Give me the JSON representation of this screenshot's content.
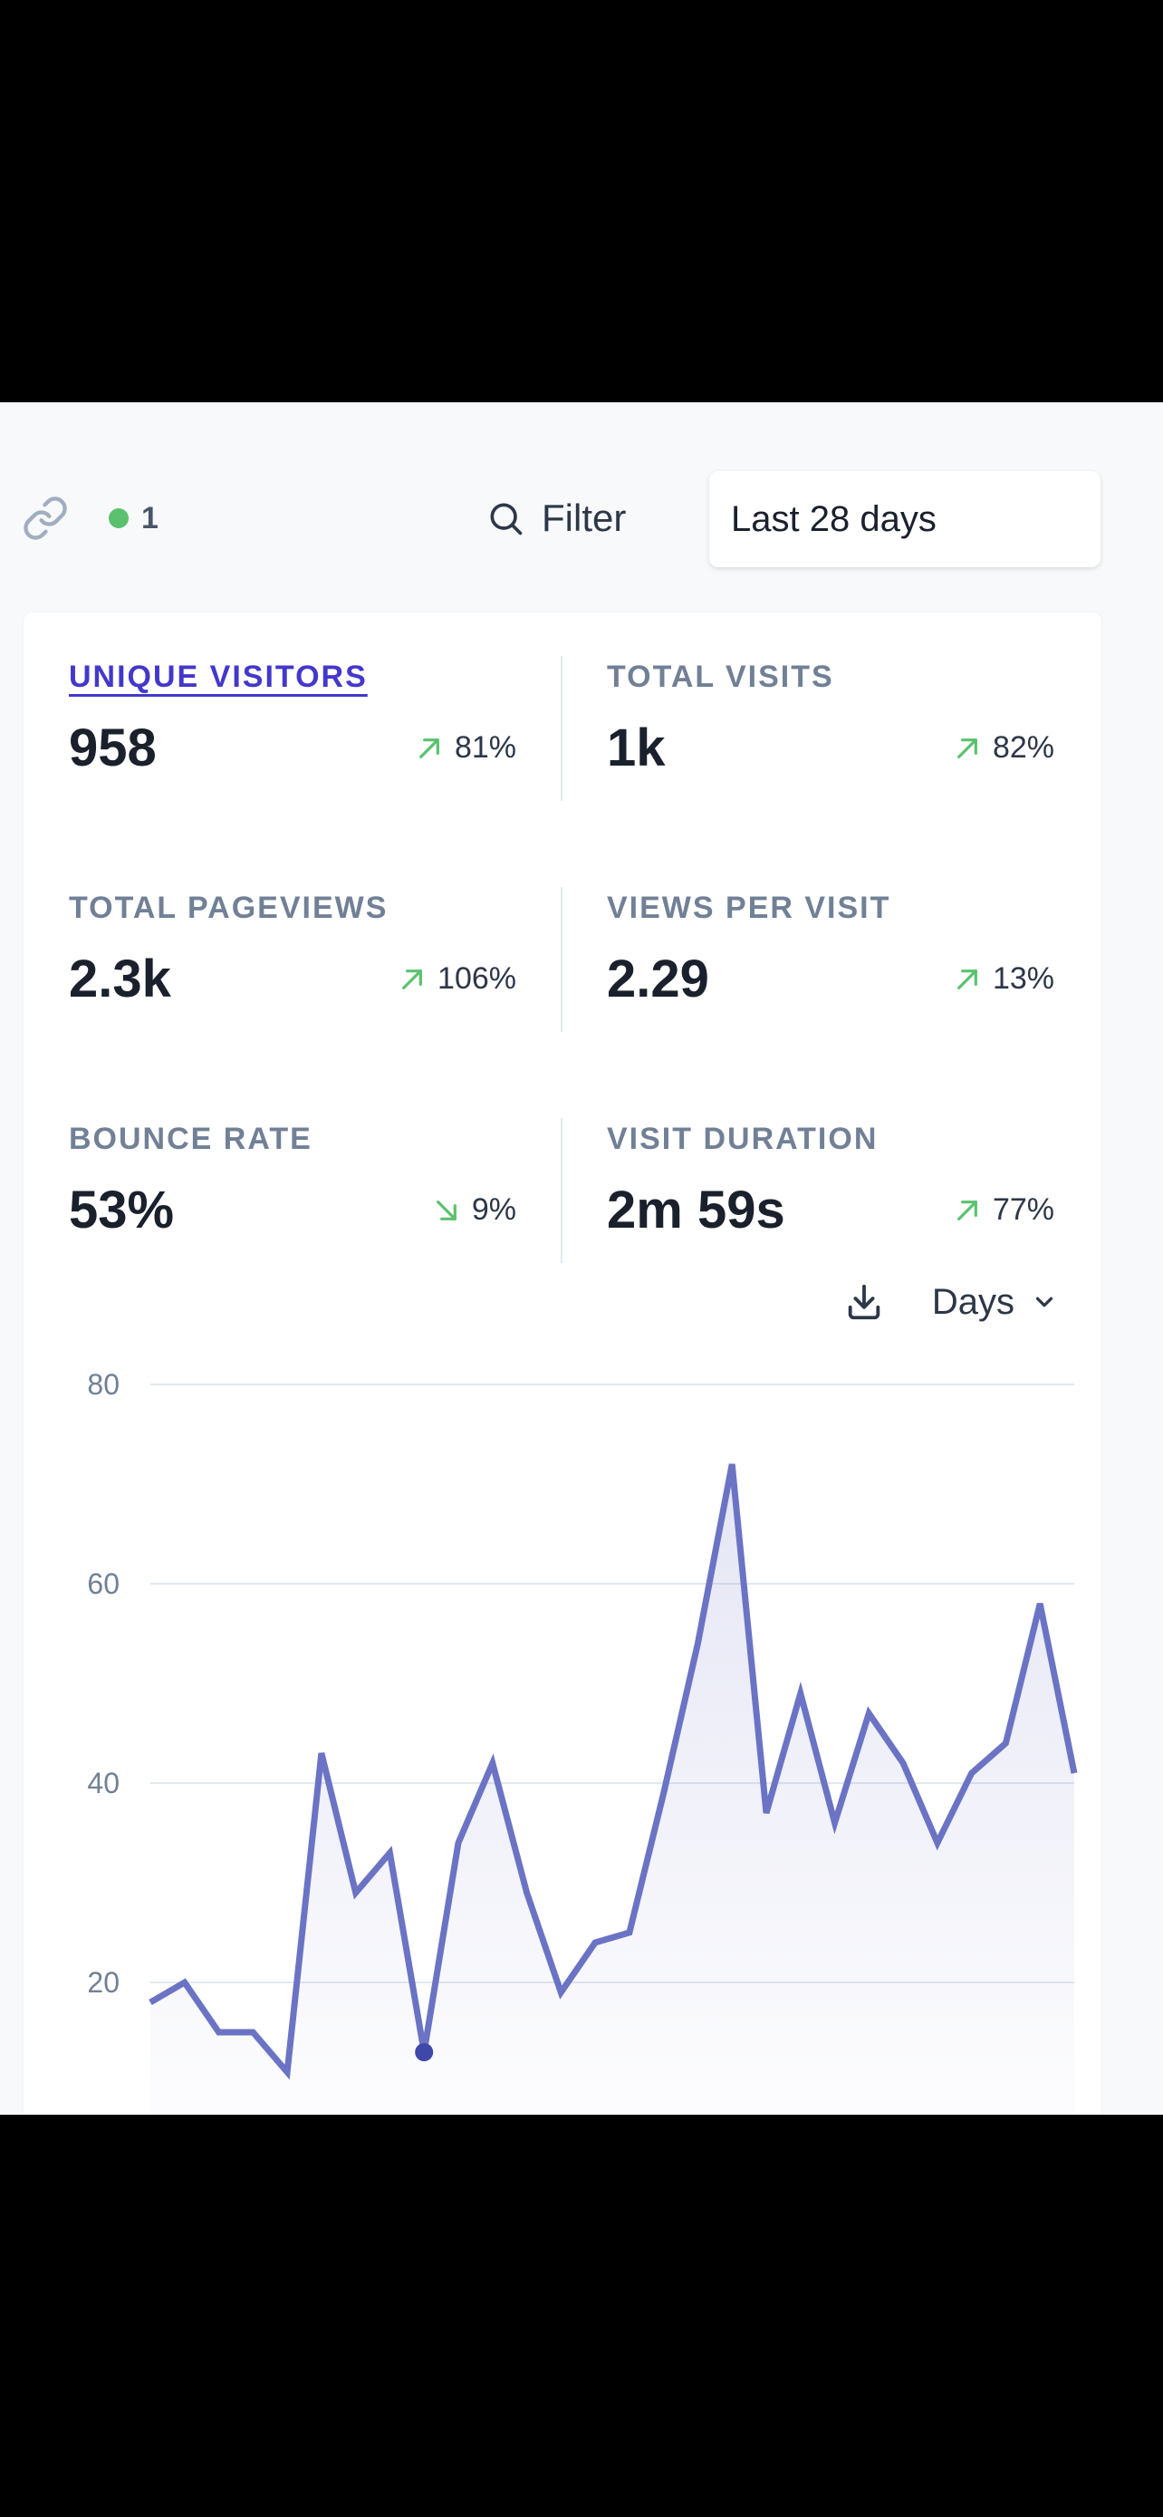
{
  "toolbar": {
    "link_icon": "link-icon",
    "live_visitors": "1",
    "filter_label": "Filter",
    "date_range": "Last 28 days"
  },
  "metrics": [
    {
      "label": "UNIQUE VISITORS",
      "value": "958",
      "change": "81%",
      "direction": "up",
      "active": true
    },
    {
      "label": "TOTAL VISITS",
      "value": "1k",
      "change": "82%",
      "direction": "up",
      "active": false
    },
    {
      "label": "TOTAL PAGEVIEWS",
      "value": "2.3k",
      "change": "106%",
      "direction": "up",
      "active": false
    },
    {
      "label": "VIEWS PER VISIT",
      "value": "2.29",
      "change": "13%",
      "direction": "up",
      "active": false
    },
    {
      "label": "BOUNCE RATE",
      "value": "53%",
      "change": "9%",
      "direction": "down",
      "active": false
    },
    {
      "label": "VISIT DURATION",
      "value": "2m 59s",
      "change": "77%",
      "direction": "up",
      "active": false
    }
  ],
  "chart_controls": {
    "download_icon": "download-icon",
    "interval_label": "Days"
  },
  "colors": {
    "accent": "#6b73c4",
    "positive": "#5ac26f",
    "active_metric": "#4338ca"
  },
  "chart_data": {
    "type": "area",
    "title": "",
    "xlabel": "",
    "ylabel": "",
    "ylim": [
      0,
      80
    ],
    "y_ticks": [
      20,
      40,
      60,
      80
    ],
    "series": [
      {
        "name": "Unique visitors",
        "values": [
          18,
          20,
          15,
          15,
          11,
          43,
          29,
          33,
          13,
          34,
          42,
          29,
          19,
          24,
          25,
          39,
          54,
          72,
          37,
          49,
          36,
          47,
          42,
          34,
          41,
          44,
          58,
          41
        ]
      }
    ],
    "highlight_index": 8
  }
}
